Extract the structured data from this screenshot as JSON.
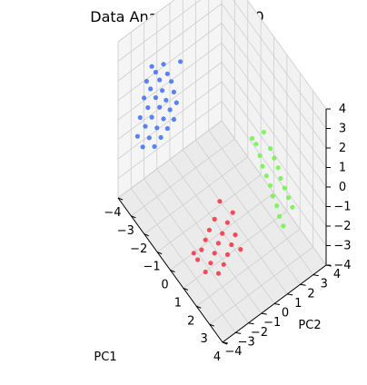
{
  "chart_data": {
    "type": "scatter",
    "projection": "3d",
    "title": "Data Analysis time: 900",
    "xlabel": "PC1",
    "ylabel": "PC2",
    "zlabel": "",
    "xlim": [
      -4,
      4
    ],
    "ylim": [
      -4,
      4
    ],
    "zlim": [
      -4,
      4
    ],
    "xticks": [
      "−4",
      "−3",
      "−2",
      "−1",
      "0",
      "1",
      "2",
      "3",
      "4"
    ],
    "yticks": [
      "−4",
      "−3",
      "−2",
      "−1",
      "0",
      "1",
      "2",
      "3",
      "4"
    ],
    "zticks": [
      "−4",
      "−3",
      "−2",
      "−1",
      "0",
      "1",
      "2",
      "3",
      "4"
    ],
    "grid": true,
    "series": [
      {
        "color": "#3d6ff5",
        "points": [
          [
            -3.4,
            -2.0,
            2.3
          ],
          [
            -3.1,
            -1.4,
            2.4
          ],
          [
            -3.3,
            -1.8,
            2.0
          ],
          [
            -3.0,
            -1.2,
            1.9
          ],
          [
            -3.5,
            -2.3,
            1.6
          ],
          [
            -3.2,
            -1.6,
            1.6
          ],
          [
            -2.9,
            -1.0,
            1.5
          ],
          [
            -3.4,
            -2.1,
            1.2
          ],
          [
            -3.1,
            -1.5,
            1.1
          ],
          [
            -2.8,
            -0.9,
            1.0
          ],
          [
            -3.6,
            -2.4,
            0.7
          ],
          [
            -3.3,
            -1.8,
            0.7
          ],
          [
            -3.0,
            -1.3,
            0.6
          ],
          [
            -2.7,
            -0.8,
            0.5
          ],
          [
            -3.5,
            -2.2,
            0.2
          ],
          [
            -3.2,
            -1.6,
            0.2
          ],
          [
            -2.9,
            -1.1,
            0.1
          ],
          [
            -3.7,
            -2.6,
            -0.3
          ],
          [
            -3.4,
            -2.0,
            -0.3
          ],
          [
            -3.1,
            -1.4,
            -0.4
          ],
          [
            -2.8,
            -0.9,
            -0.4
          ],
          [
            -3.6,
            -2.3,
            -0.8
          ],
          [
            -3.3,
            -1.7,
            -0.9
          ],
          [
            -3.0,
            -1.2,
            -0.9
          ],
          [
            -3.8,
            -2.7,
            -1.3
          ],
          [
            -3.5,
            -2.1,
            -1.4
          ],
          [
            -3.2,
            -1.5,
            -1.4
          ],
          [
            -3.7,
            -2.4,
            -1.9
          ],
          [
            -3.4,
            -1.8,
            -1.9
          ],
          [
            -2.6,
            -0.6,
            2.6
          ]
        ]
      },
      {
        "color": "#f53040",
        "points": [
          [
            1.6,
            -2.2,
            -0.8
          ],
          [
            2.0,
            -1.6,
            -0.9
          ],
          [
            1.5,
            -2.5,
            -1.3
          ],
          [
            1.9,
            -1.9,
            -1.4
          ],
          [
            2.3,
            -1.3,
            -1.4
          ],
          [
            1.4,
            -2.7,
            -1.8
          ],
          [
            1.8,
            -2.1,
            -1.9
          ],
          [
            2.2,
            -1.5,
            -1.9
          ],
          [
            1.3,
            -2.9,
            -2.3
          ],
          [
            1.7,
            -2.3,
            -2.4
          ],
          [
            2.1,
            -1.7,
            -2.4
          ],
          [
            1.2,
            -3.1,
            -2.8
          ],
          [
            1.6,
            -2.5,
            -2.9
          ],
          [
            2.0,
            -1.9,
            -2.9
          ],
          [
            1.5,
            -2.8,
            -3.3
          ],
          [
            1.9,
            -2.2,
            -3.3
          ],
          [
            1.8,
            -2.0,
            0.2
          ],
          [
            2.2,
            -1.4,
            -0.3
          ],
          [
            1.0,
            -3.2,
            -2.6
          ],
          [
            2.4,
            -1.0,
            -2.2
          ]
        ]
      },
      {
        "color": "#6ef545",
        "points": [
          [
            2.6,
            0.6,
            3.2
          ],
          [
            2.4,
            0.2,
            2.6
          ],
          [
            2.8,
            0.9,
            2.4
          ],
          [
            2.5,
            0.4,
            2.0
          ],
          [
            2.9,
            1.1,
            1.9
          ],
          [
            2.6,
            0.5,
            1.5
          ],
          [
            3.0,
            1.3,
            1.4
          ],
          [
            2.7,
            0.7,
            1.0
          ],
          [
            3.1,
            1.4,
            0.9
          ],
          [
            2.8,
            0.9,
            0.5
          ],
          [
            3.2,
            1.6,
            0.4
          ],
          [
            2.9,
            1.0,
            0.0
          ],
          [
            3.3,
            1.8,
            -0.1
          ],
          [
            3.0,
            1.2,
            -0.5
          ],
          [
            3.1,
            1.3,
            -1.0
          ],
          [
            3.2,
            1.5,
            -1.5
          ],
          [
            2.3,
            0.0,
            2.9
          ],
          [
            3.4,
            2.0,
            -0.6
          ]
        ]
      }
    ]
  }
}
